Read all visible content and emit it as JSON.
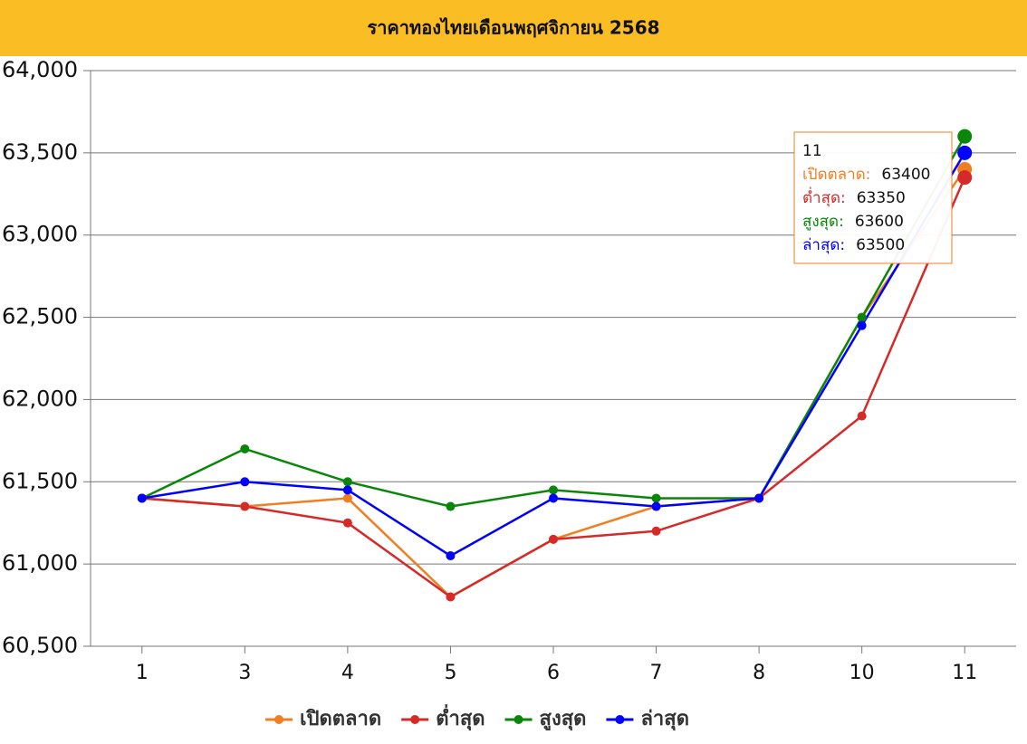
{
  "chart_data": {
    "type": "line",
    "title": "ราคาทองไทยเดือนพฤศจิกายน 2568",
    "categories": [
      "1",
      "3",
      "4",
      "5",
      "6",
      "7",
      "8",
      "10",
      "11"
    ],
    "series": [
      {
        "name": "เปิดตลาด",
        "color": "#f07f22",
        "values": [
          61400,
          61350,
          61400,
          60800,
          61150,
          61350,
          61400,
          62500,
          63400
        ]
      },
      {
        "name": "ต่ำสุด",
        "color": "#d62a28",
        "values": [
          61400,
          61350,
          61250,
          60800,
          61150,
          61200,
          61400,
          61900,
          63350
        ]
      },
      {
        "name": "สูงสุด",
        "color": "#0a870a",
        "values": [
          61400,
          61700,
          61500,
          61350,
          61450,
          61400,
          61400,
          62500,
          63600
        ]
      },
      {
        "name": "ล่าสุด",
        "color": "#0000ff",
        "values": [
          61400,
          61500,
          61450,
          61050,
          61400,
          61350,
          61400,
          62450,
          63500
        ]
      }
    ],
    "ylim": [
      60500,
      64000
    ],
    "yticks": [
      {
        "value": 60500,
        "label": "60,500"
      },
      {
        "value": 61000,
        "label": "61,000"
      },
      {
        "value": 61500,
        "label": "61,500"
      },
      {
        "value": 62000,
        "label": "62,000"
      },
      {
        "value": 62500,
        "label": "62,500"
      },
      {
        "value": 63000,
        "label": "63,000"
      },
      {
        "value": 63500,
        "label": "63,500"
      },
      {
        "value": 64000,
        "label": "64,000"
      }
    ],
    "grid": true,
    "legend": "bottom",
    "tooltip": {
      "index": 8,
      "labels": [
        "เปิดตลาด:",
        "ต่ำสุด:",
        "สูงสุด:",
        "ล่าสุด:"
      ]
    }
  }
}
